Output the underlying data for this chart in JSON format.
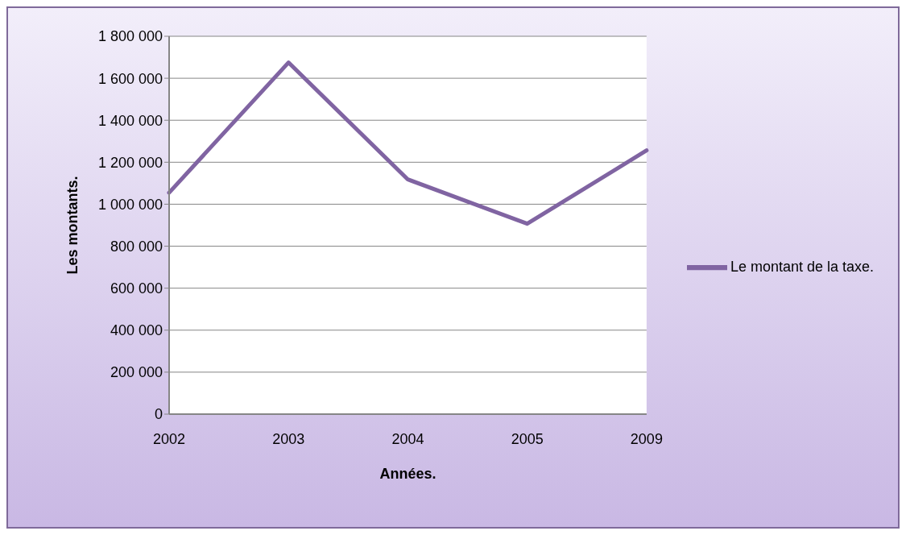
{
  "chart_data": {
    "type": "line",
    "xlabel": "Années.",
    "ylabel": "Les montants.",
    "categories": [
      "2002",
      "2003",
      "2004",
      "2005",
      "2009"
    ],
    "series": [
      {
        "name": "Le montant de la taxe.",
        "color": "#8064a2",
        "values": [
          1055000,
          1675000,
          1118000,
          907000,
          1256000
        ]
      }
    ],
    "ylim": [
      0,
      1800000
    ],
    "yticks": [
      0,
      {
        "value": 200000,
        "label": "200 000"
      },
      {
        "value": 400000,
        "label": "400 000"
      },
      {
        "value": 600000,
        "label": "600 000"
      },
      {
        "value": 800000,
        "label": "800 000"
      },
      {
        "value": 1000000,
        "label": "1 000 000"
      },
      {
        "value": 1200000,
        "label": "1 200 000"
      },
      {
        "value": 1400000,
        "label": "1 400 000"
      },
      {
        "value": 1600000,
        "label": "1 600 000"
      },
      {
        "value": 1800000,
        "label": "1 800 000"
      }
    ],
    "grid": "y",
    "legend": "right",
    "marker": "none",
    "line_style": "solid"
  }
}
